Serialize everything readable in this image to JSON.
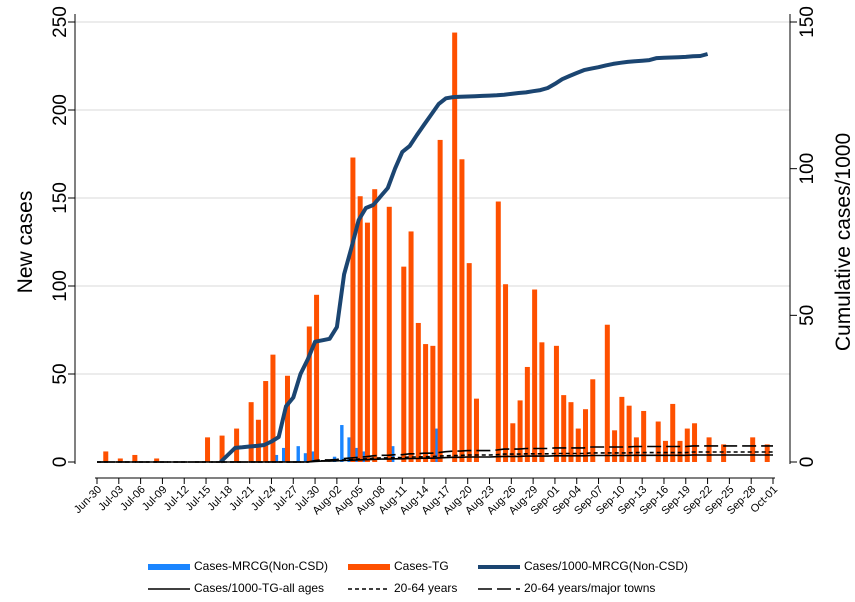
{
  "chart_data": {
    "type": "combo",
    "y_label": "New cases",
    "y2_label": "Cumulative cases/1000",
    "ylim": [
      0,
      250
    ],
    "yticks": [
      0,
      50,
      100,
      150,
      200,
      250
    ],
    "y2lim": [
      0,
      150
    ],
    "y2ticks": [
      0,
      50,
      100,
      150
    ],
    "grid": true,
    "legend": "bottom",
    "categories": [
      "Jun-30",
      null,
      null,
      "Jul-03",
      null,
      null,
      "Jul-06",
      null,
      null,
      "Jul-09",
      null,
      null,
      "Jul-12",
      null,
      null,
      "Jul-15",
      null,
      null,
      "Jul-18",
      null,
      null,
      "Jul-21",
      null,
      null,
      "Jul-24",
      null,
      null,
      "Jul-27",
      null,
      null,
      "Jul-30",
      null,
      null,
      "Aug-02",
      null,
      null,
      "Aug-05",
      null,
      null,
      "Aug-08",
      null,
      null,
      "Aug-11",
      null,
      null,
      "Aug-14",
      null,
      null,
      "Aug-17",
      null,
      null,
      "Aug-20",
      null,
      null,
      "Aug-23",
      null,
      null,
      "Aug-26",
      null,
      null,
      "Aug-29",
      null,
      null,
      "Sep-01",
      null,
      null,
      "Sep-04",
      null,
      null,
      "Sep-07",
      null,
      null,
      "Sep-10",
      null,
      null,
      "Sep-13",
      null,
      null,
      "Sep-16",
      null,
      null,
      "Sep-19",
      null,
      null,
      "Sep-22",
      null,
      null,
      "Sep-25",
      null,
      null,
      "Sep-28",
      null,
      null,
      "Oct-01"
    ],
    "series": [
      {
        "name": "Cases-MRCG(Non-CSD)",
        "type": "bar",
        "color": "#1a85ff",
        "values": [
          null,
          null,
          null,
          null,
          null,
          null,
          null,
          null,
          null,
          null,
          null,
          null,
          null,
          null,
          null,
          null,
          null,
          null,
          null,
          null,
          null,
          null,
          null,
          null,
          null,
          4,
          8,
          null,
          9,
          5,
          6,
          null,
          null,
          3,
          21,
          14,
          8,
          6,
          null,
          null,
          null,
          9,
          null,
          null,
          null,
          null,
          null,
          19,
          null,
          null,
          null,
          null,
          null,
          null,
          null,
          null,
          null,
          null,
          null,
          null,
          null,
          null,
          null,
          null,
          null,
          null,
          null,
          null,
          null,
          null,
          null,
          null,
          null,
          null,
          null,
          null,
          null,
          null,
          null,
          null,
          null,
          null,
          null,
          null,
          null,
          null,
          null,
          null,
          null,
          null,
          null,
          null,
          null,
          null
        ]
      },
      {
        "name": "Cases-TG",
        "type": "bar",
        "color": "#fe5000",
        "values": [
          null,
          6,
          null,
          2,
          null,
          4,
          null,
          null,
          2,
          null,
          null,
          null,
          null,
          null,
          null,
          14,
          null,
          15,
          null,
          19,
          null,
          34,
          24,
          46,
          61,
          null,
          49,
          null,
          null,
          77,
          95,
          null,
          null,
          null,
          null,
          173,
          151,
          136,
          155,
          null,
          145,
          null,
          111,
          131,
          79,
          67,
          66,
          183,
          null,
          244,
          172,
          113,
          36,
          null,
          null,
          148,
          101,
          22,
          35,
          54,
          98,
          68,
          null,
          66,
          38,
          34,
          19,
          30,
          47,
          null,
          78,
          18,
          37,
          32,
          14,
          29,
          null,
          23,
          12,
          33,
          12,
          19,
          22,
          null,
          14,
          null,
          10,
          null,
          null,
          null,
          14,
          null,
          10,
          null
        ]
      },
      {
        "name": "Cases/1000-MRCG(Non-CSD)",
        "type": "line",
        "axis": "y2",
        "color": "#1b4571",
        "dash": "solid",
        "width": 4,
        "values": [
          null,
          null,
          null,
          null,
          null,
          null,
          null,
          null,
          null,
          null,
          null,
          null,
          null,
          null,
          null,
          null,
          null,
          0,
          2.4,
          4.8,
          5,
          5.3,
          5.5,
          5.8,
          7,
          8.5,
          19,
          22,
          30,
          35,
          41,
          41.5,
          42,
          46,
          64,
          73,
          82.5,
          86.6,
          87.6,
          90.5,
          93.4,
          100,
          105.7,
          107.7,
          111.4,
          115,
          118.5,
          122,
          124,
          124.4,
          124.5,
          124.6,
          124.7,
          124.8,
          124.9,
          125,
          125.2,
          125.5,
          125.8,
          126,
          126.4,
          126.8,
          127.5,
          128.9,
          130.5,
          131.6,
          132.6,
          133.6,
          134.1,
          134.6,
          135.2,
          135.7,
          136.1,
          136.4,
          136.6,
          136.8,
          137,
          137.7,
          137.8,
          137.9,
          138,
          138.1,
          138.3,
          138.4,
          139.1,
          null,
          null,
          null,
          null,
          null,
          null,
          null,
          null,
          null
        ]
      },
      {
        "name": "Cases/1000-TG-all ages",
        "type": "line",
        "axis": "y2",
        "color": "#000000",
        "dash": "solid",
        "width": 1.6,
        "values": [
          0,
          0,
          0,
          0,
          0,
          0,
          0,
          0,
          0,
          0,
          0,
          0,
          0,
          0,
          0,
          0,
          0,
          0,
          0,
          0,
          0,
          0,
          0,
          0,
          0,
          0,
          0,
          0,
          0,
          0,
          0.2,
          0.3,
          0.3,
          0.4,
          0.5,
          0.6,
          0.7,
          0.8,
          0.9,
          1.0,
          1.0,
          1.1,
          1.1,
          1.2,
          1.2,
          1.3,
          1.3,
          1.4,
          1.5,
          1.6,
          1.6,
          1.7,
          1.7,
          1.7,
          1.7,
          1.8,
          1.9,
          1.9,
          1.9,
          2.0,
          2.0,
          2.0,
          2.0,
          2.1,
          2.1,
          2.1,
          2.1,
          2.1,
          2.2,
          2.2,
          2.2,
          2.2,
          2.2,
          2.2,
          2.3,
          2.3,
          2.3,
          2.3,
          2.3,
          2.3,
          2.3,
          2.3,
          2.4,
          2.4,
          2.4,
          2.4,
          2.4,
          2.4,
          2.4,
          2.4,
          2.4,
          2.4,
          2.4,
          2.4
        ]
      },
      {
        "name": "20-64 years",
        "type": "line",
        "axis": "y2",
        "color": "#000000",
        "dash": "dot",
        "width": 1.6,
        "values": [
          0,
          0,
          0,
          0,
          0,
          0,
          0,
          0,
          0,
          0,
          0,
          0,
          0,
          0,
          0,
          0,
          0,
          0,
          0,
          0,
          0,
          0,
          0,
          0,
          0,
          0,
          0,
          0,
          0,
          0,
          0.3,
          0.4,
          0.4,
          0.6,
          0.7,
          0.8,
          1.0,
          1.1,
          1.3,
          1.4,
          1.4,
          1.5,
          1.5,
          1.7,
          1.7,
          1.8,
          1.8,
          2.0,
          2.1,
          2.2,
          2.2,
          2.4,
          2.4,
          2.4,
          2.4,
          2.5,
          2.7,
          2.7,
          2.7,
          2.8,
          2.8,
          2.8,
          2.8,
          2.9,
          2.9,
          2.9,
          2.9,
          2.9,
          3.1,
          3.1,
          3.1,
          3.1,
          3.1,
          3.1,
          3.2,
          3.2,
          3.2,
          3.2,
          3.2,
          3.2,
          3.2,
          3.2,
          3.4,
          3.4,
          3.4,
          3.4,
          3.4,
          3.4,
          3.4,
          3.4,
          3.4,
          3.4,
          3.4,
          3.4
        ]
      },
      {
        "name": "20-64 years/major towns",
        "type": "line",
        "axis": "y2",
        "color": "#000000",
        "dash": "longdash",
        "width": 1.6,
        "values": [
          0,
          0,
          0,
          0,
          0,
          0,
          0,
          0,
          0,
          0,
          0,
          0,
          0,
          0,
          0,
          0,
          0,
          0,
          0,
          0,
          0,
          0,
          0,
          0,
          0,
          0,
          0,
          0,
          0,
          0,
          0.5,
          0.7,
          0.7,
          0.9,
          1.2,
          1.4,
          1.6,
          1.8,
          2.1,
          2.3,
          2.3,
          2.5,
          2.5,
          2.8,
          2.8,
          3.0,
          3.0,
          3.2,
          3.5,
          3.7,
          3.7,
          3.9,
          3.9,
          3.9,
          3.9,
          4.1,
          4.4,
          4.4,
          4.4,
          4.6,
          4.6,
          4.6,
          4.6,
          4.8,
          4.8,
          4.8,
          4.8,
          4.8,
          5.1,
          5.1,
          5.1,
          5.1,
          5.1,
          5.1,
          5.3,
          5.3,
          5.3,
          5.3,
          5.3,
          5.3,
          5.3,
          5.3,
          5.5,
          5.5,
          5.5,
          5.5,
          5.5,
          5.5,
          5.5,
          5.5,
          5.5,
          5.5,
          5.5,
          5.5
        ]
      }
    ]
  }
}
